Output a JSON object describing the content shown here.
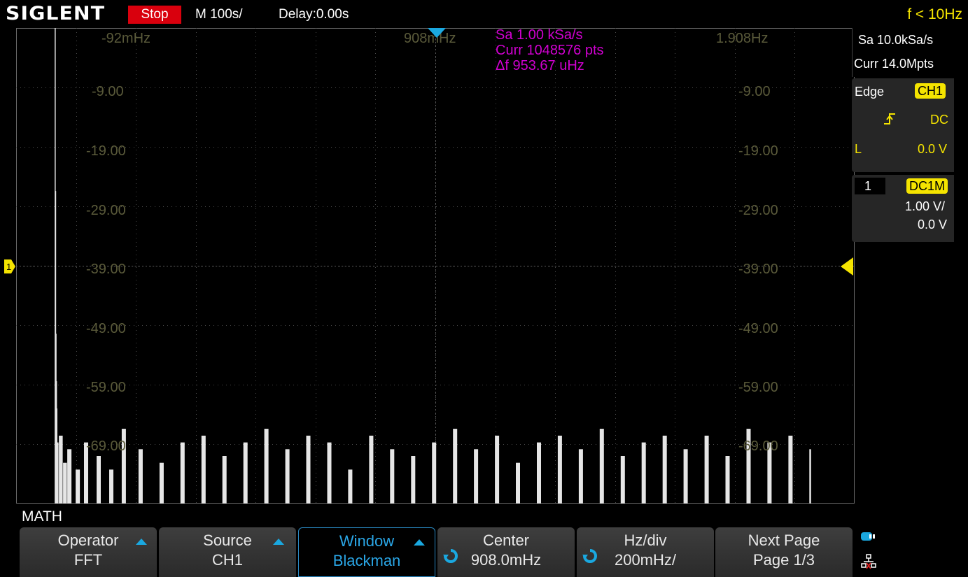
{
  "header": {
    "brand": "SIGLENT",
    "run_state": "Stop",
    "timebase": "M 100s/",
    "delay": "Delay:0.00s",
    "trigger_freq": "f < 10Hz"
  },
  "grid": {
    "x_labels": [
      "-92mHz",
      "908mHz",
      "1.908Hz"
    ],
    "y_labels_left": [
      "-9.00",
      "-19.00",
      "-29.00",
      "-39.00",
      "-49.00",
      "-59.00",
      "-69.00"
    ],
    "y_labels_right": [
      "-9.00",
      "-19.00",
      "-29.00",
      "-39.00",
      "-49.00",
      "-59.00",
      "-69.00"
    ]
  },
  "fft_info": {
    "sample_rate": "Sa 1.00 kSa/s",
    "points": "Curr 1048576 pts",
    "resolution": "Δf 953.67 uHz"
  },
  "colors": {
    "accent": "#1aa8e0",
    "trigger_yellow": "#f5e400",
    "stop_red": "#d9000d",
    "fft_info_magenta": "#d000d0",
    "grid_text": "#5a5a3a"
  },
  "right_panel": {
    "acq_rate": "Sa 10.0kSa/s",
    "acq_depth": "Curr 14.0Mpts",
    "trigger_type": "Edge",
    "trigger_source": "CH1",
    "trigger_coupling": "DC",
    "trigger_level_label": "L",
    "trigger_level": "0.0 V",
    "channel_number": "1",
    "channel_coupling": "DC1M",
    "channel_scale": "1.00 V/",
    "channel_offset": "0.0 V"
  },
  "channel_marker": "1",
  "menu": {
    "title": "MATH",
    "keys": [
      {
        "title": "Operator",
        "value": "FFT"
      },
      {
        "title": "Source",
        "value": "CH1"
      },
      {
        "title": "Window",
        "value": "Blackman"
      },
      {
        "title": "Center",
        "value": "908.0mHz"
      },
      {
        "title": "Hz/div",
        "value": "200mHz/"
      },
      {
        "title": "Next Page",
        "value": "Page 1/3"
      }
    ]
  },
  "chart_data": {
    "type": "bar",
    "x_unit": "Hz",
    "y_unit": "dB",
    "xlim": [
      -0.092,
      1.908
    ],
    "ylim": [
      -74,
      -4
    ],
    "x": [
      0.0,
      0.001,
      0.002,
      0.003,
      0.004,
      0.005,
      0.01,
      0.02,
      0.03,
      0.05,
      0.07,
      0.1,
      0.13,
      0.16,
      0.2,
      0.25,
      0.3,
      0.35,
      0.4,
      0.45,
      0.5,
      0.55,
      0.6,
      0.65,
      0.7,
      0.75,
      0.8,
      0.85,
      0.9,
      0.95,
      1.0,
      1.05,
      1.1,
      1.15,
      1.2,
      1.25,
      1.3,
      1.35,
      1.4,
      1.45,
      1.5,
      1.55,
      1.6,
      1.65,
      1.7,
      1.75,
      1.8
    ],
    "values": [
      -4,
      -28,
      -49,
      -56,
      -60,
      -65,
      -64,
      -68,
      -66,
      -69,
      -65,
      -67,
      -69,
      -63,
      -66,
      -68,
      -65,
      -64,
      -67,
      -65,
      -63,
      -66,
      -64,
      -65,
      -69,
      -64,
      -66,
      -67,
      -65,
      -63,
      -66,
      -64,
      -68,
      -65,
      -64,
      -66,
      -63,
      -67,
      -65,
      -64,
      -66,
      -64,
      -67,
      -63,
      -65,
      -64,
      -66
    ]
  }
}
